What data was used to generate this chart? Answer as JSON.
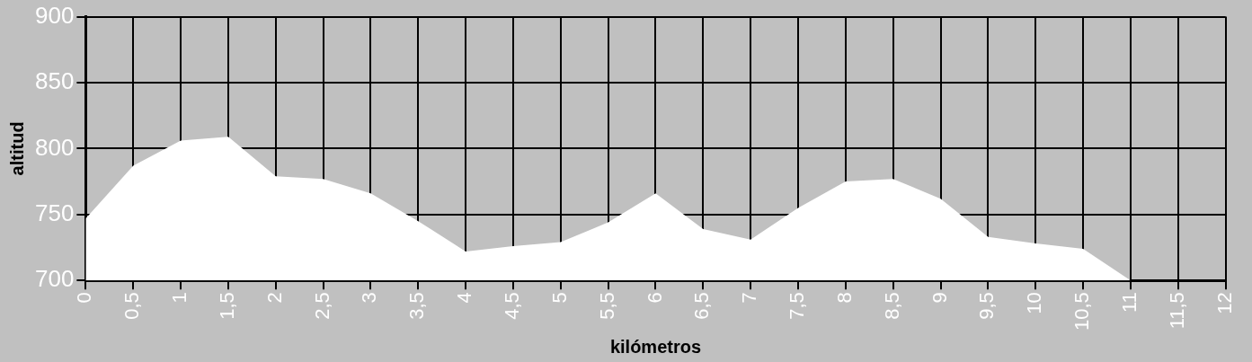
{
  "chart_data": {
    "type": "area",
    "xlabel": "kilómetros",
    "ylabel": "altitud",
    "categories": [
      "0",
      "0,5",
      "1",
      "1,5",
      "2",
      "2,5",
      "3",
      "3,5",
      "4",
      "4,5",
      "5",
      "5,5",
      "6",
      "6,5",
      "7",
      "7,5",
      "8",
      "8,5",
      "9",
      "9,5",
      "10",
      "10,5",
      "11",
      "11,5",
      "12"
    ],
    "values": [
      747,
      787,
      806,
      809,
      779,
      777,
      766,
      745,
      722,
      726,
      729,
      744,
      766,
      739,
      731,
      755,
      775,
      777,
      762,
      733,
      728,
      724,
      700,
      null,
      null
    ],
    "color": "#ffffff",
    "ylim": [
      700,
      900
    ],
    "yticks": [
      700,
      750,
      800,
      850,
      900
    ],
    "grid": true
  }
}
